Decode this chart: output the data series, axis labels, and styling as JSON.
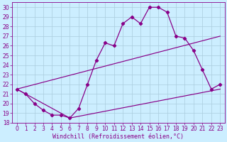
{
  "xlabel": "Windchill (Refroidissement éolien,°C)",
  "background_color": "#cceeff",
  "grid_color": "#aaccdd",
  "line_color": "#880088",
  "xlim_min": -0.5,
  "xlim_max": 23.5,
  "ylim_min": 18,
  "ylim_max": 30.5,
  "xticks": [
    0,
    1,
    2,
    3,
    4,
    5,
    6,
    7,
    8,
    9,
    10,
    11,
    12,
    13,
    14,
    15,
    16,
    17,
    18,
    19,
    20,
    21,
    22,
    23
  ],
  "yticks": [
    18,
    19,
    20,
    21,
    22,
    23,
    24,
    25,
    26,
    27,
    28,
    29,
    30
  ],
  "curve_x": [
    0,
    1,
    2,
    3,
    4,
    5,
    6,
    7,
    8,
    9,
    10,
    11,
    12,
    13,
    14,
    15,
    16,
    17,
    18,
    19,
    20,
    21,
    22,
    23
  ],
  "curve_y": [
    21.5,
    21.0,
    20.0,
    19.3,
    18.8,
    18.8,
    18.5,
    19.5,
    22.0,
    24.5,
    26.3,
    26.0,
    28.3,
    29.0,
    28.3,
    30.0,
    30.0,
    29.5,
    27.0,
    26.8,
    25.5,
    23.5,
    21.5,
    22.0
  ],
  "line1_x": [
    0,
    23
  ],
  "line1_y": [
    21.5,
    27.0
  ],
  "line2_x": [
    0,
    6,
    23
  ],
  "line2_y": [
    21.5,
    18.5,
    21.5
  ],
  "fontsize_tick": 5.5,
  "fontsize_xlabel": 6.0,
  "linewidth_curve": 0.9,
  "linewidth_lines": 0.85,
  "markersize": 2.2
}
